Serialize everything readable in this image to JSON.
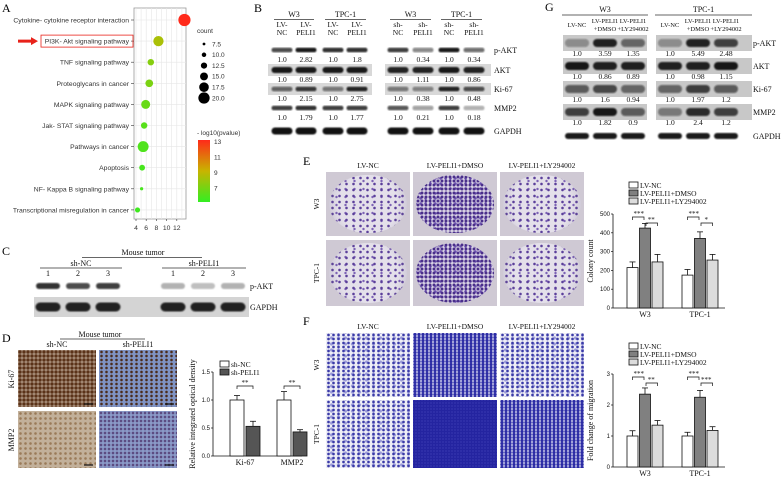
{
  "panel_letters": {
    "a": "A",
    "b": "B",
    "c": "C",
    "d": "D",
    "e": "E",
    "f": "F",
    "g": "G"
  },
  "panel_a": {
    "pathways": [
      "Cytokine- cytokine receptor interaction",
      "PI3K- Akt signaling pathway",
      "TNF signaling pathway",
      "Proteoglycans in cancer",
      "MAPK signaling pathway",
      "Jak- STAT signaling pathway",
      "Pathways in cancer",
      "Apoptosis",
      "NF- Kappa B signaling pathway",
      "Transcriptional misregulation in cancer"
    ],
    "highlighted_index": 1,
    "x_values": [
      13.5,
      8.4,
      6.9,
      6.6,
      5.9,
      5.6,
      5.4,
      5.2,
      5.1,
      4.3
    ],
    "counts": [
      20,
      17,
      11,
      13,
      15,
      11,
      18,
      10,
      6,
      9
    ],
    "neg_log10_p": [
      13,
      8.5,
      7.6,
      7.3,
      6.8,
      6.4,
      6.2,
      6.0,
      6.0,
      5.8
    ],
    "x_ticks": [
      "4",
      "6",
      "8",
      "10",
      "12"
    ],
    "size_legend_title": "count",
    "size_legend": [
      "7.5",
      "10.0",
      "12.5",
      "15.0",
      "17.5",
      "20.0"
    ],
    "color_legend_title": "- log10(pvalue)",
    "color_ticks": [
      "13",
      "11",
      "9",
      "7"
    ],
    "colors": {
      "high": "#ff2a1a",
      "mid": "#c8b400",
      "low": "#33ee22",
      "arrow": "#e8221a"
    }
  },
  "panel_b": {
    "groups": [
      "W3",
      "TPC-1",
      "W3",
      "TPC-1"
    ],
    "lanes": [
      [
        "LV-",
        "NC"
      ],
      [
        "LV-",
        "PELI1"
      ],
      [
        "LV-",
        "NC"
      ],
      [
        "LV-",
        "PELI1"
      ],
      [
        "sh-",
        "NC"
      ],
      [
        "sh-",
        "PELI1"
      ],
      [
        "sh-",
        "NC"
      ],
      [
        "sh-",
        "PELI1"
      ]
    ],
    "proteins": [
      "p-AKT",
      "AKT",
      "Ki-67",
      "MMP2",
      "GAPDH"
    ],
    "values": [
      [
        "1.0",
        "2.82",
        "1.0",
        "1.8",
        "1.0",
        "0.34",
        "1.0",
        "0.34"
      ],
      [
        "1.0",
        "0.89",
        "1.0",
        "0.91",
        "1.0",
        "1.11",
        "1.0",
        "0.86"
      ],
      [
        "1.0",
        "2.15",
        "1.0",
        "2.75",
        "1.0",
        "0.38",
        "1.0",
        "0.48"
      ],
      [
        "1.0",
        "1.79",
        "1.0",
        "1.77",
        "1.0",
        "0.21",
        "1.0",
        "0.18"
      ]
    ]
  },
  "panel_c": {
    "title": "Mouse tumor",
    "groups": [
      "sh-NC",
      "sh-PELI1"
    ],
    "lanes": [
      "1",
      "2",
      "3",
      "1",
      "2",
      "3"
    ],
    "proteins": [
      "p-AKT",
      "GAPDH"
    ]
  },
  "panel_d": {
    "title": "Mouse tumor",
    "columns": [
      "sh-NC",
      "sh-PELI1"
    ],
    "rows": [
      "Ki-67",
      "MMP2"
    ]
  },
  "panel_e": {
    "columns": [
      "LV-NC",
      "LV-PELI1+DMSO",
      "LV-PELI1+LY294002"
    ],
    "rows": [
      "W3",
      "TPC-1"
    ]
  },
  "panel_f": {
    "columns": [
      "LV-NC",
      "LV-PELI1+DMSO",
      "LV-PELI1+LY294002"
    ],
    "rows": [
      "W3",
      "TPC-1"
    ]
  },
  "panel_g": {
    "groups": [
      "W3",
      "TPC-1"
    ],
    "lanes": [
      [
        "LV-NC",
        ""
      ],
      [
        "LV-PELI1",
        "+DMSO"
      ],
      [
        "LV-PELI1",
        "+LY294002"
      ],
      [
        "LV-NC",
        ""
      ],
      [
        "LV-PELI1",
        "+DMSO"
      ],
      [
        "LV-PELI1",
        "+LY294002"
      ]
    ],
    "proteins": [
      "p-AKT",
      "AKT",
      "Ki-67",
      "MMP2",
      "GAPDH"
    ],
    "values": [
      [
        "1.0",
        "3.59",
        "1.35",
        "1.0",
        "5.49",
        "2.48"
      ],
      [
        "1.0",
        "0.86",
        "0.89",
        "1.0",
        "0.98",
        "1.15"
      ],
      [
        "1.0",
        "1.6",
        "0.94",
        "1.0",
        "1.97",
        "1.2"
      ],
      [
        "1.0",
        "1.82",
        "0.9",
        "1.0",
        "2.4",
        "1.2"
      ]
    ]
  },
  "chart_data": [
    {
      "id": "d",
      "type": "bar",
      "ylabel": "Relative integrated optical density",
      "categories": [
        "Ki-67",
        "MMP2"
      ],
      "ylim": [
        0,
        1.5
      ],
      "yticks": [
        "0.0",
        "0.5",
        "1.0",
        "1.5"
      ],
      "series": [
        {
          "name": "sh-NC",
          "values": [
            1.0,
            1.0
          ],
          "errors": [
            0.08,
            0.15
          ],
          "color": "#ffffff"
        },
        {
          "name": "sh-PELI1",
          "values": [
            0.53,
            0.43
          ],
          "errors": [
            0.09,
            0.04
          ],
          "color": "#555555"
        }
      ],
      "significance": [
        [
          "0-1",
          "**"
        ],
        [
          "1-1",
          "**"
        ]
      ]
    },
    {
      "id": "e",
      "type": "bar",
      "ylabel": "Colony count",
      "categories": [
        "W3",
        "TPC-1"
      ],
      "ylim": [
        0,
        500
      ],
      "yticks": [
        "0",
        "100",
        "200",
        "300",
        "400",
        "500"
      ],
      "series": [
        {
          "name": "LV-NC",
          "values": [
            215,
            175
          ],
          "errors": [
            30,
            30
          ],
          "color": "#ffffff"
        },
        {
          "name": "LV-PELI1+DMSO",
          "values": [
            425,
            370
          ],
          "errors": [
            25,
            35
          ],
          "color": "#808080"
        },
        {
          "name": "LV-PELI1+LY294002",
          "values": [
            245,
            255
          ],
          "errors": [
            40,
            30
          ],
          "color": "#dcdcdc"
        }
      ],
      "significance": [
        [
          "***",
          "**"
        ],
        [
          "***",
          "*"
        ]
      ]
    },
    {
      "id": "f",
      "type": "bar",
      "ylabel": "Fold change of migration",
      "categories": [
        "W3",
        "TPC-1"
      ],
      "ylim": [
        0,
        3
      ],
      "yticks": [
        "0",
        "1",
        "2",
        "3"
      ],
      "series": [
        {
          "name": "LV-NC",
          "values": [
            1.0,
            1.0
          ],
          "errors": [
            0.17,
            0.12
          ],
          "color": "#ffffff"
        },
        {
          "name": "LV-PELI1+DMSO",
          "values": [
            2.35,
            2.25
          ],
          "errors": [
            0.2,
            0.22
          ],
          "color": "#808080"
        },
        {
          "name": "LV-PELI1+LY294002",
          "values": [
            1.35,
            1.18
          ],
          "errors": [
            0.15,
            0.12
          ],
          "color": "#dcdcdc"
        }
      ],
      "significance": [
        [
          "***",
          "**"
        ],
        [
          "***",
          "***"
        ]
      ]
    }
  ]
}
